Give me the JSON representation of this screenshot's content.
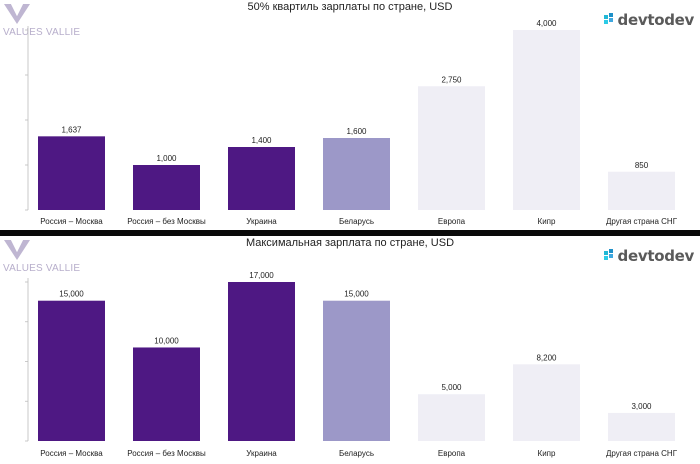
{
  "brand": {
    "logo_text": "VALUES VALLIE",
    "devtodev": "devtodev"
  },
  "colors": {
    "dark": "#4e1883",
    "medium": "#9c98c8",
    "light": "#efeef5",
    "axis": "#bdbdbd"
  },
  "chart_data": [
    {
      "type": "bar",
      "title": "50% квартиль зарплаты по стране, USD",
      "categories": [
        "Россия – Москва",
        "Россия – без Москвы",
        "Украина",
        "Беларусь",
        "Европа",
        "Кипр",
        "Другая страна СНГ"
      ],
      "values": [
        1637,
        1000,
        1400,
        1600,
        2750,
        4000,
        850
      ],
      "value_labels": [
        "1,637",
        "1,000",
        "1,400",
        "1,600",
        "2,750",
        "4,000",
        "850"
      ],
      "bar_colors": [
        "#4e1883",
        "#4e1883",
        "#4e1883",
        "#9c98c8",
        "#efeef5",
        "#efeef5",
        "#efeef5"
      ],
      "ylim": [
        0,
        4000
      ],
      "grid": false,
      "legend": "none"
    },
    {
      "type": "bar",
      "title": "Максимальная зарплата по стране, USD",
      "categories": [
        "Россия – Москва",
        "Россия – без Москвы",
        "Украина",
        "Беларусь",
        "Европа",
        "Кипр",
        "Другая страна СНГ"
      ],
      "values": [
        15000,
        10000,
        17000,
        15000,
        5000,
        8200,
        3000
      ],
      "value_labels": [
        "15,000",
        "10,000",
        "17,000",
        "15,000",
        "5,000",
        "8,200",
        "3,000"
      ],
      "bar_colors": [
        "#4e1883",
        "#4e1883",
        "#4e1883",
        "#9c98c8",
        "#efeef5",
        "#efeef5",
        "#efeef5"
      ],
      "ylim": [
        0,
        17000
      ],
      "grid": false,
      "legend": "none"
    }
  ]
}
